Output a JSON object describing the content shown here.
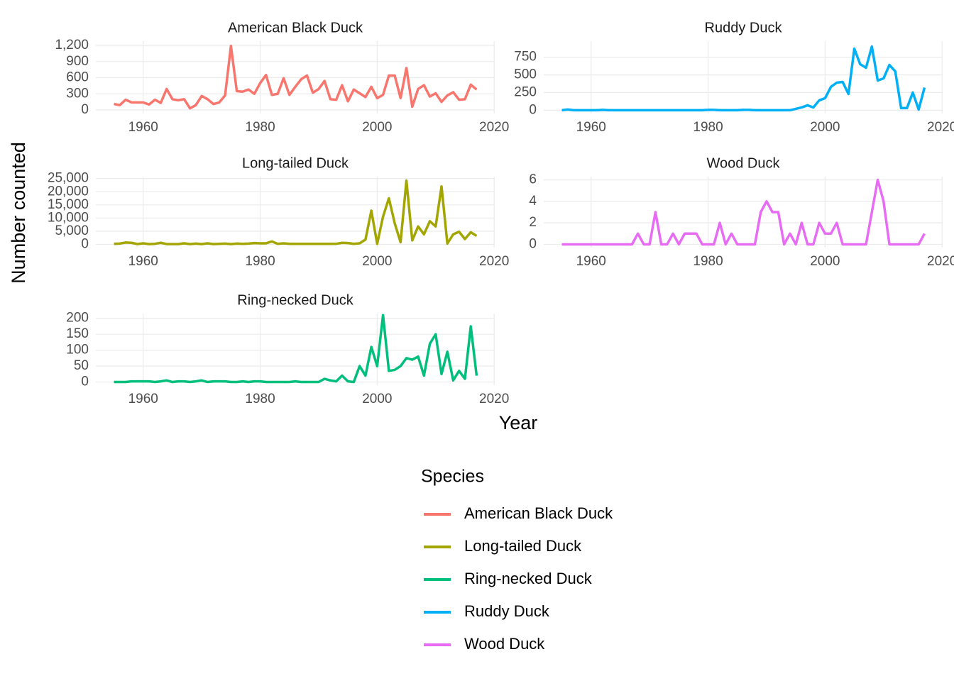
{
  "figure": {
    "x_label": "Year",
    "y_label": "Number counted",
    "legend_title": "Species"
  },
  "chart_data": [
    {
      "type": "line",
      "title": "American Black Duck",
      "x": [
        1955,
        1956,
        1957,
        1958,
        1959,
        1960,
        1961,
        1962,
        1963,
        1964,
        1965,
        1966,
        1967,
        1968,
        1969,
        1970,
        1971,
        1972,
        1973,
        1974,
        1975,
        1976,
        1977,
        1978,
        1979,
        1980,
        1981,
        1982,
        1983,
        1984,
        1985,
        1986,
        1987,
        1988,
        1989,
        1990,
        1991,
        1992,
        1993,
        1994,
        1995,
        1996,
        1997,
        1998,
        1999,
        2000,
        2001,
        2002,
        2003,
        2004,
        2005,
        2006,
        2007,
        2008,
        2009,
        2010,
        2011,
        2012,
        2013,
        2014,
        2015,
        2016,
        2017
      ],
      "series": [
        {
          "name": "American Black Duck",
          "color": "#F8766D",
          "values": [
            110,
            90,
            190,
            140,
            140,
            140,
            100,
            190,
            130,
            390,
            200,
            180,
            200,
            30,
            90,
            260,
            200,
            110,
            140,
            270,
            1190,
            350,
            340,
            380,
            300,
            500,
            650,
            280,
            300,
            590,
            280,
            430,
            570,
            640,
            320,
            390,
            540,
            200,
            190,
            460,
            160,
            380,
            310,
            240,
            430,
            220,
            280,
            640,
            640,
            220,
            780,
            60,
            390,
            460,
            250,
            310,
            150,
            270,
            330,
            190,
            200,
            470,
            380
          ]
        }
      ],
      "xlim": [
        1951.9,
        2020.1
      ],
      "ylim": [
        -66,
        1279
      ],
      "xticks": [
        1960,
        1980,
        2000,
        2020
      ],
      "yticks": [
        0,
        300,
        600,
        900,
        {
          "value": 1200,
          "label": "1,200"
        }
      ]
    },
    {
      "type": "line",
      "title": "Long-tailed Duck",
      "x": [
        1955,
        1956,
        1957,
        1958,
        1959,
        1960,
        1961,
        1962,
        1963,
        1964,
        1965,
        1966,
        1967,
        1968,
        1969,
        1970,
        1971,
        1972,
        1973,
        1974,
        1975,
        1976,
        1977,
        1978,
        1979,
        1980,
        1981,
        1982,
        1983,
        1984,
        1985,
        1986,
        1987,
        1988,
        1989,
        1990,
        1991,
        1992,
        1993,
        1994,
        1995,
        1996,
        1997,
        1998,
        1999,
        2000,
        2001,
        2002,
        2003,
        2004,
        2005,
        2006,
        2007,
        2008,
        2009,
        2010,
        2011,
        2012,
        2013,
        2014,
        2015,
        2016,
        2017
      ],
      "series": [
        {
          "name": "Long-tailed Duck",
          "color": "#A3A500",
          "values": [
            200,
            300,
            700,
            600,
            100,
            400,
            100,
            200,
            600,
            100,
            100,
            100,
            400,
            100,
            300,
            100,
            400,
            100,
            200,
            300,
            100,
            300,
            200,
            300,
            500,
            400,
            400,
            1100,
            200,
            400,
            200,
            200,
            200,
            200,
            200,
            200,
            200,
            200,
            200,
            600,
            500,
            200,
            400,
            1800,
            12800,
            200,
            10500,
            17500,
            8000,
            800,
            24200,
            1500,
            6800,
            3800,
            8800,
            6800,
            22000,
            300,
            3800,
            4800,
            2000,
            4600,
            3200
          ]
        }
      ],
      "xlim": [
        1951.9,
        2020.1
      ],
      "ylim": [
        -1225,
        25725
      ],
      "xticks": [
        1960,
        1980,
        2000,
        2020
      ],
      "yticks": [
        0,
        {
          "value": 5000,
          "label": "5,000"
        },
        {
          "value": 10000,
          "label": "10,000"
        },
        {
          "value": 15000,
          "label": "15,000"
        },
        {
          "value": 20000,
          "label": "20,000"
        },
        {
          "value": 25000,
          "label": "25,000"
        }
      ]
    },
    {
      "type": "line",
      "title": "Ring-necked Duck",
      "x": [
        1955,
        1956,
        1957,
        1958,
        1959,
        1960,
        1961,
        1962,
        1963,
        1964,
        1965,
        1966,
        1967,
        1968,
        1969,
        1970,
        1971,
        1972,
        1973,
        1974,
        1975,
        1976,
        1977,
        1978,
        1979,
        1980,
        1981,
        1982,
        1983,
        1984,
        1985,
        1986,
        1987,
        1988,
        1989,
        1990,
        1991,
        1992,
        1993,
        1994,
        1995,
        1996,
        1997,
        1998,
        1999,
        2000,
        2001,
        2002,
        2003,
        2004,
        2005,
        2006,
        2007,
        2008,
        2009,
        2010,
        2011,
        2012,
        2013,
        2014,
        2015,
        2016,
        2017
      ],
      "series": [
        {
          "name": "Ring-necked Duck",
          "color": "#00BF7D",
          "values": [
            0,
            0,
            0,
            2,
            2,
            2,
            2,
            0,
            2,
            5,
            0,
            2,
            2,
            0,
            2,
            5,
            0,
            2,
            2,
            2,
            0,
            0,
            2,
            0,
            2,
            2,
            0,
            0,
            0,
            0,
            0,
            2,
            0,
            0,
            0,
            0,
            10,
            5,
            2,
            20,
            2,
            0,
            50,
            20,
            110,
            50,
            210,
            35,
            38,
            50,
            75,
            70,
            80,
            20,
            120,
            150,
            25,
            95,
            5,
            35,
            10,
            175,
            20
          ]
        }
      ],
      "xlim": [
        1951.9,
        2020.1
      ],
      "ylim": [
        -10,
        215
      ],
      "xticks": [
        1960,
        1980,
        2000,
        2020
      ],
      "yticks": [
        0,
        50,
        100,
        150,
        200
      ]
    },
    {
      "type": "line",
      "title": "Ruddy Duck",
      "x": [
        1955,
        1956,
        1957,
        1958,
        1959,
        1960,
        1961,
        1962,
        1963,
        1964,
        1965,
        1966,
        1967,
        1968,
        1969,
        1970,
        1971,
        1972,
        1973,
        1974,
        1975,
        1976,
        1977,
        1978,
        1979,
        1980,
        1981,
        1982,
        1983,
        1984,
        1985,
        1986,
        1987,
        1988,
        1989,
        1990,
        1991,
        1992,
        1993,
        1994,
        1995,
        1996,
        1997,
        1998,
        1999,
        2000,
        2001,
        2002,
        2003,
        2004,
        2005,
        2006,
        2007,
        2008,
        2009,
        2010,
        2011,
        2012,
        2013,
        2014,
        2015,
        2016,
        2017
      ],
      "series": [
        {
          "name": "Ruddy Duck",
          "color": "#00B0F6",
          "values": [
            0,
            10,
            0,
            0,
            0,
            0,
            0,
            5,
            0,
            0,
            0,
            0,
            0,
            0,
            0,
            0,
            0,
            0,
            0,
            0,
            0,
            0,
            0,
            0,
            0,
            5,
            5,
            0,
            0,
            0,
            0,
            5,
            5,
            0,
            0,
            0,
            0,
            0,
            0,
            0,
            20,
            40,
            70,
            40,
            140,
            170,
            330,
            390,
            400,
            230,
            870,
            650,
            600,
            900,
            420,
            450,
            640,
            550,
            30,
            30,
            250,
            10,
            320
          ]
        }
      ],
      "xlim": [
        1951.9,
        2020.1
      ],
      "ylim": [
        -46,
        976
      ],
      "xticks": [
        1960,
        1980,
        2000,
        2020
      ],
      "yticks": [
        0,
        250,
        500,
        750
      ]
    },
    {
      "type": "line",
      "title": "Wood Duck",
      "x": [
        1955,
        1956,
        1957,
        1958,
        1959,
        1960,
        1961,
        1962,
        1963,
        1964,
        1965,
        1966,
        1967,
        1968,
        1969,
        1970,
        1971,
        1972,
        1973,
        1974,
        1975,
        1976,
        1977,
        1978,
        1979,
        1980,
        1981,
        1982,
        1983,
        1984,
        1985,
        1986,
        1987,
        1988,
        1989,
        1990,
        1991,
        1992,
        1993,
        1994,
        1995,
        1996,
        1997,
        1998,
        1999,
        2000,
        2001,
        2002,
        2003,
        2004,
        2005,
        2006,
        2007,
        2008,
        2009,
        2010,
        2011,
        2012,
        2013,
        2014,
        2015,
        2016,
        2017
      ],
      "series": [
        {
          "name": "Wood Duck",
          "color": "#E76BF3",
          "values": [
            0,
            0,
            0,
            0,
            0,
            0,
            0,
            0,
            0,
            0,
            0,
            0,
            0,
            1,
            0,
            0,
            3,
            0,
            0,
            1,
            0,
            1,
            1,
            1,
            0,
            0,
            0,
            2,
            0,
            1,
            0,
            0,
            0,
            0,
            3,
            4,
            3,
            3,
            0,
            1,
            0,
            2,
            0,
            0,
            2,
            1,
            1,
            2,
            0,
            0,
            0,
            0,
            0,
            3,
            6,
            4,
            0,
            0,
            0,
            0,
            0,
            0,
            1
          ]
        }
      ],
      "xlim": [
        1951.9,
        2020.1
      ],
      "ylim": [
        -0.3,
        6.3
      ],
      "xticks": [
        1960,
        1980,
        2000,
        2020
      ],
      "yticks": [
        0,
        2,
        4,
        6
      ]
    }
  ]
}
